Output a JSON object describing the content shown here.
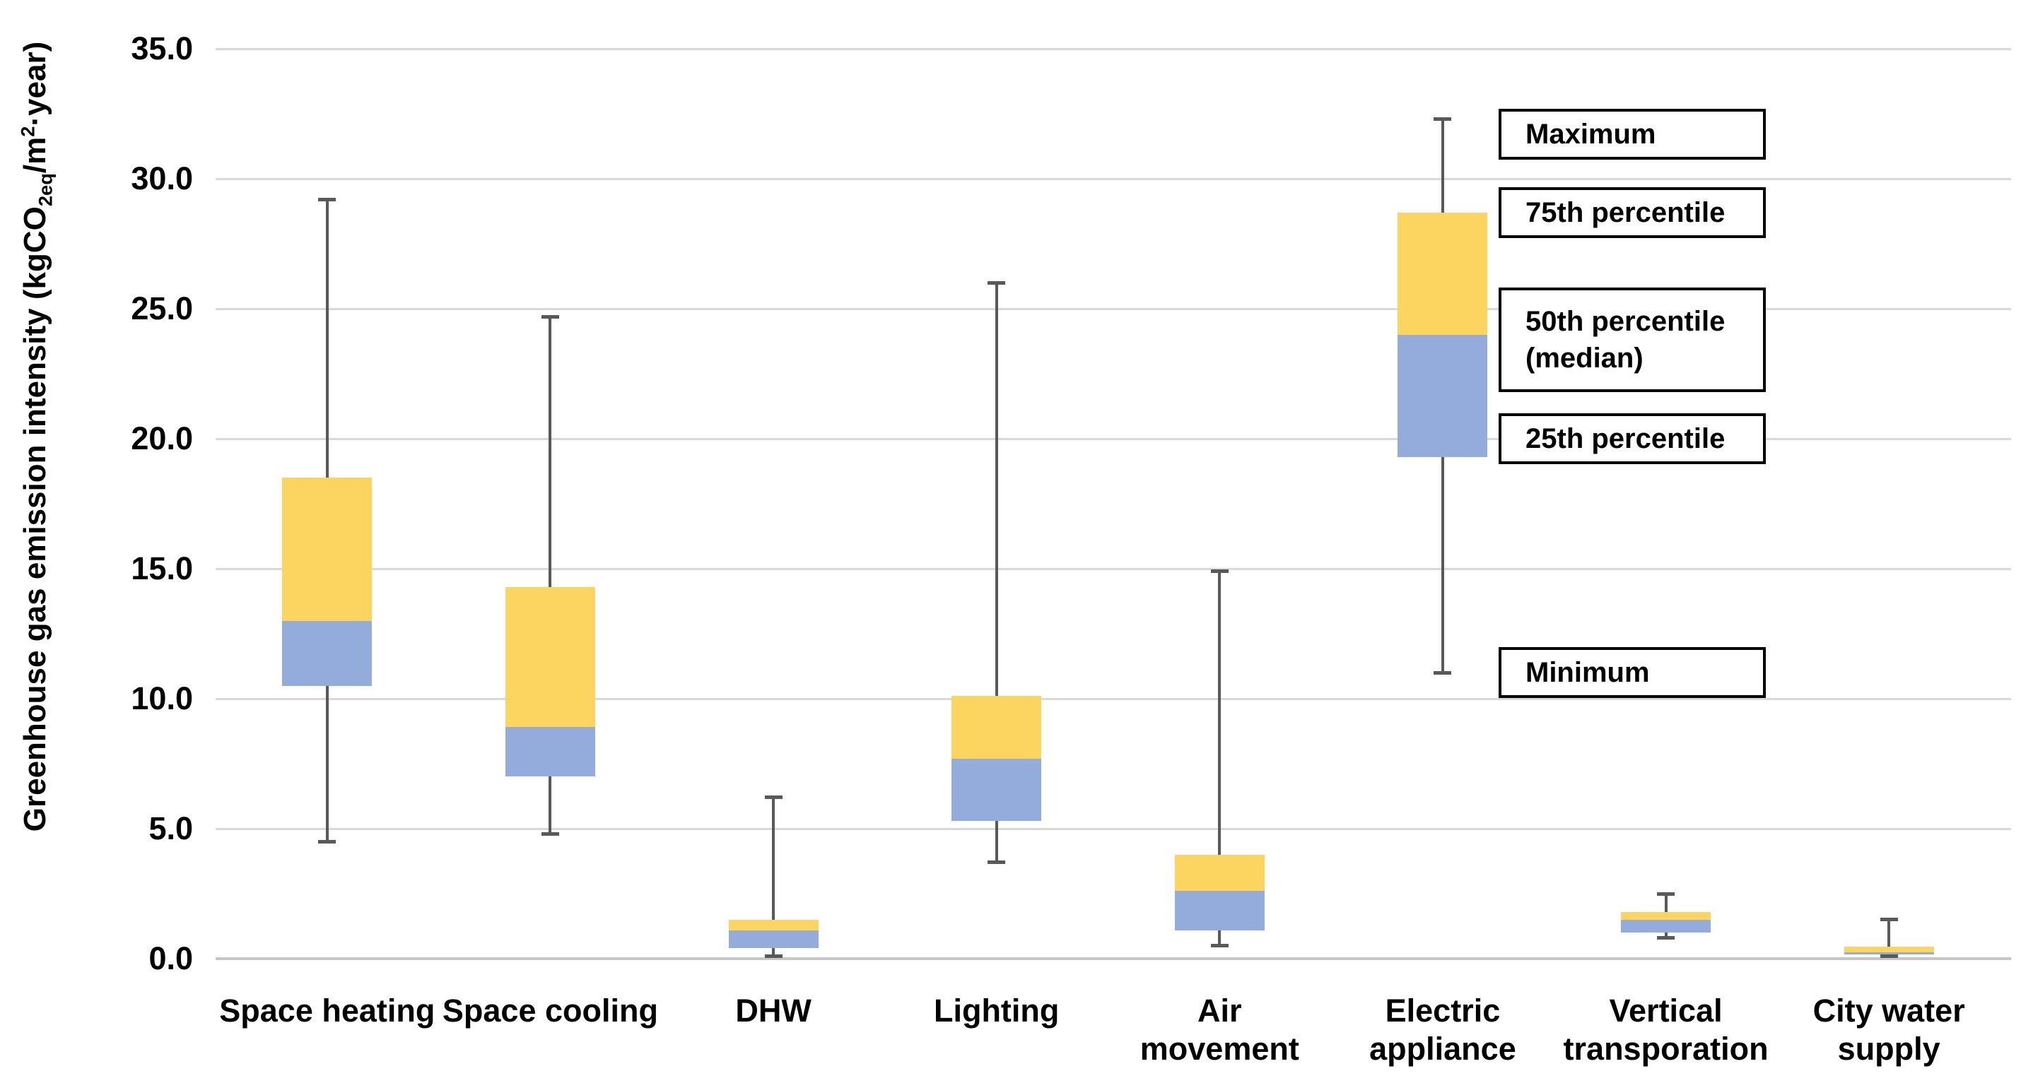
{
  "chart_data": {
    "type": "boxplot",
    "title": "",
    "ylabel_text": "Greenhouse gas emission intensity (kgCO2eq/m2·year)",
    "ylabel_parts": {
      "prefix": "Greenhouse gas emission intensity (kgCO",
      "sub": "2eq",
      "mid": "/m",
      "sup": "2",
      "suffix": "·year)"
    },
    "ylim": [
      0,
      35
    ],
    "yticks": [
      0,
      5,
      10,
      15,
      20,
      25,
      30,
      35
    ],
    "ytick_labels": [
      "0.0",
      "5.0",
      "10.0",
      "15.0",
      "20.0",
      "25.0",
      "30.0",
      "35.0"
    ],
    "grid": "horizontal",
    "legend_position": "inside-top-right",
    "categories": [
      "Space heating",
      "Space cooling",
      "DHW",
      "Lighting",
      "Air movement",
      "Electric appliance",
      "Vertical transporation",
      "City water supply"
    ],
    "category_label_lines": [
      [
        "Space heating"
      ],
      [
        "Space cooling"
      ],
      [
        "DHW"
      ],
      [
        "Lighting"
      ],
      [
        "Air",
        "movement"
      ],
      [
        "Electric",
        "appliance"
      ],
      [
        "Vertical",
        "transporation"
      ],
      [
        "City water",
        "supply"
      ]
    ],
    "series": [
      {
        "name": "Space heating",
        "min": 4.5,
        "q1": 10.5,
        "median": 13.0,
        "q3": 18.5,
        "max": 29.2
      },
      {
        "name": "Space cooling",
        "min": 4.8,
        "q1": 7.0,
        "median": 8.9,
        "q3": 14.3,
        "max": 24.7
      },
      {
        "name": "DHW",
        "min": 0.1,
        "q1": 0.4,
        "median": 1.1,
        "q3": 1.5,
        "max": 6.2
      },
      {
        "name": "Lighting",
        "min": 3.7,
        "q1": 5.3,
        "median": 7.7,
        "q3": 10.1,
        "max": 26.0
      },
      {
        "name": "Air movement",
        "min": 0.5,
        "q1": 1.1,
        "median": 2.6,
        "q3": 4.0,
        "max": 14.9
      },
      {
        "name": "Electric appliance",
        "min": 11.0,
        "q1": 19.3,
        "median": 24.0,
        "q3": 28.7,
        "max": 32.3
      },
      {
        "name": "Vertical transporation",
        "min": 0.8,
        "q1": 1.0,
        "median": 1.5,
        "q3": 1.8,
        "max": 2.5
      },
      {
        "name": "City water supply",
        "min": 0.1,
        "q1": 0.15,
        "median": 0.25,
        "q3": 0.45,
        "max": 1.5
      }
    ],
    "annotations": [
      {
        "label_lines": [
          "Maximum"
        ],
        "level": 31.7
      },
      {
        "label_lines": [
          "75th  percentile"
        ],
        "level": 28.7
      },
      {
        "label_lines": [
          "50th percentile",
          "(median)"
        ],
        "level": 23.8
      },
      {
        "label_lines": [
          "25th percentile"
        ],
        "level": 20.0
      },
      {
        "label_lines": [
          "Minimum"
        ],
        "level": 11.0
      }
    ],
    "colors": {
      "upper_box": "#FBD560",
      "lower_box": "#93ACDC",
      "whisker": "#595959",
      "gridline": "#D9D9D9",
      "axis_line": "#C6C6C6",
      "text": "#000000",
      "legend_border": "#000000",
      "background": "#FFFFFF"
    }
  }
}
